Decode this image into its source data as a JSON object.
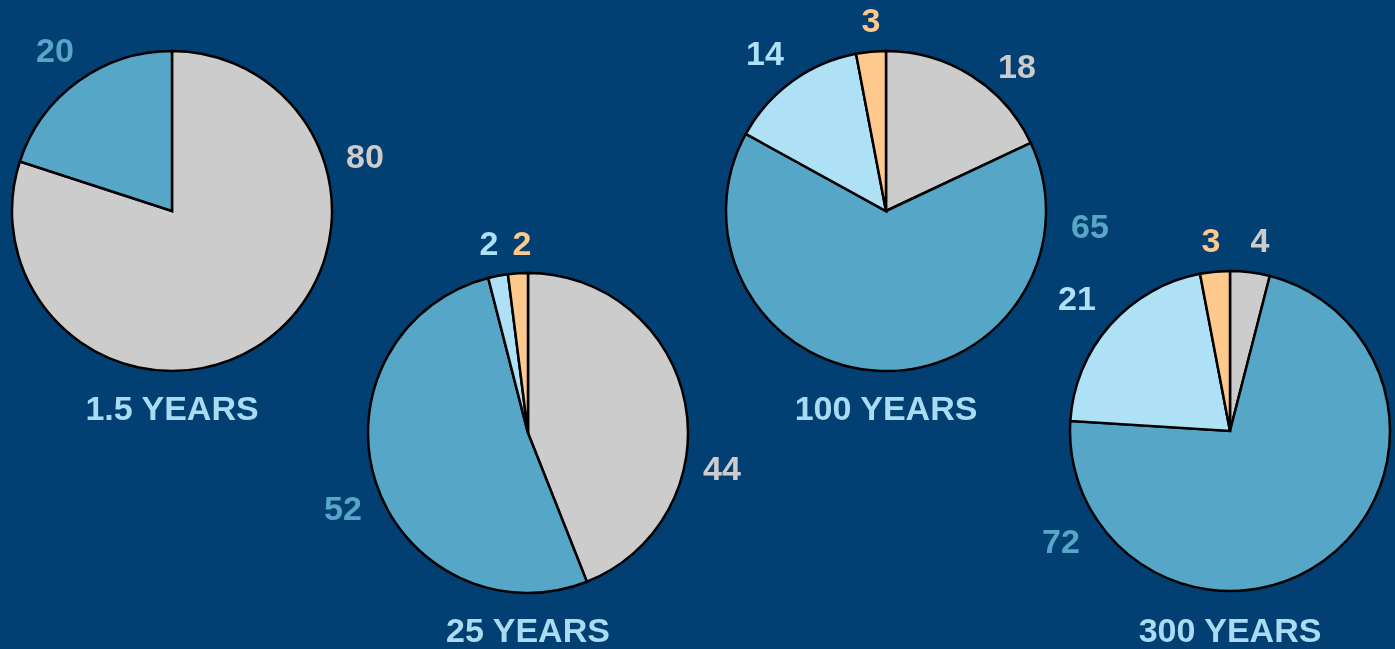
{
  "chart_data": [
    {
      "type": "pie",
      "title": "1.5 YEARS",
      "categories": [
        null,
        null
      ],
      "values": [
        80,
        20
      ],
      "colors": [
        "#cccccc",
        "#56a6c7"
      ],
      "data_labels": true
    },
    {
      "type": "pie",
      "title": "25 YEARS",
      "categories": [
        null,
        null,
        null,
        null
      ],
      "values": [
        44,
        52,
        2,
        2
      ],
      "colors": [
        "#cccccc",
        "#56a6c7",
        "#aee0f6",
        "#fdc98c"
      ],
      "data_labels": true
    },
    {
      "type": "pie",
      "title": "100 YEARS",
      "categories": [
        null,
        null,
        null,
        null
      ],
      "values": [
        18,
        65,
        14,
        3
      ],
      "colors": [
        "#cccccc",
        "#56a6c7",
        "#aee0f6",
        "#fdc98c"
      ],
      "data_labels": true
    },
    {
      "type": "pie",
      "title": "300 YEARS",
      "categories": [
        null,
        null,
        null,
        null
      ],
      "values": [
        4,
        72,
        21,
        3
      ],
      "colors": [
        "#cccccc",
        "#56a6c7",
        "#aee0f6",
        "#fdc98c"
      ],
      "data_labels": true
    }
  ]
}
